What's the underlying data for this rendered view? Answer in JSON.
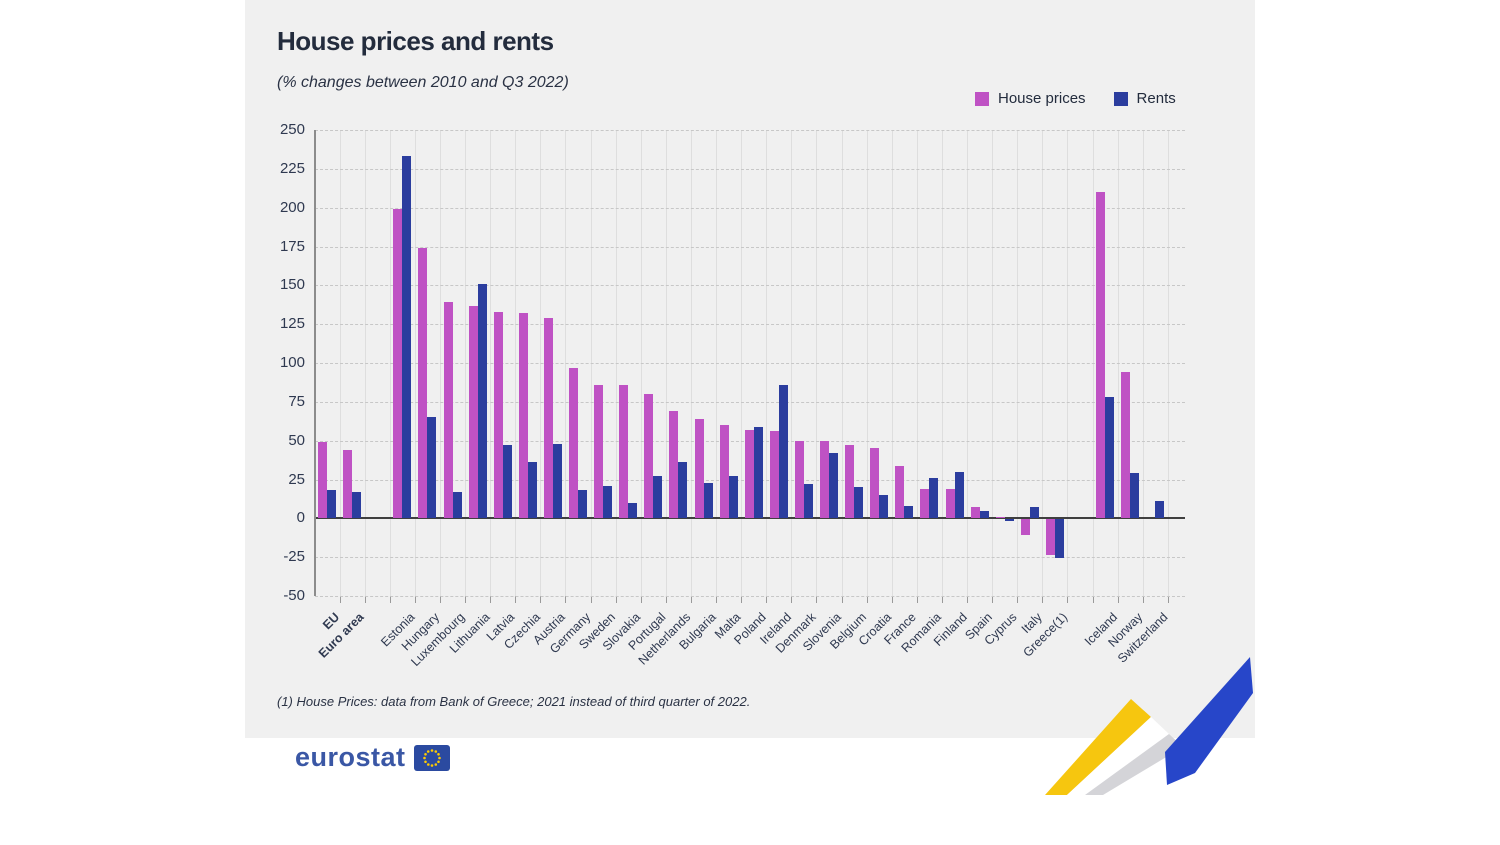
{
  "header": {
    "title": "House prices and rents",
    "subtitle": "(% changes between 2010 and Q3 2022)"
  },
  "legend": [
    {
      "label": "House prices",
      "color": "#bf52c4"
    },
    {
      "label": "Rents",
      "color": "#2b3d9e"
    }
  ],
  "footnote": "(1) House Prices: data from Bank of Greece; 2021 instead of third quarter of 2022.",
  "logo": {
    "text": "eurostat"
  },
  "colors": {
    "house_prices": "#bf52c4",
    "rents": "#2b3d9e",
    "background": "#f0f0f0",
    "ribbon_yellow": "#f6c60f",
    "ribbon_blue": "#2746c9",
    "ribbon_gray": "#d4d4d8"
  },
  "chart_data": {
    "type": "bar",
    "title": "House prices and rents",
    "subtitle": "(% changes between 2010 and Q3 2022)",
    "ylabel": "% change",
    "ylim": [
      -50,
      250
    ],
    "ytick_step": 25,
    "grid": true,
    "legend_position": "top-right",
    "categories": [
      "EU",
      "Euro area",
      "Estonia",
      "Hungary",
      "Luxembourg",
      "Lithuania",
      "Latvia",
      "Czechia",
      "Austria",
      "Germany",
      "Sweden",
      "Slovakia",
      "Portugal",
      "Netherlands",
      "Bulgaria",
      "Malta",
      "Poland",
      "Ireland",
      "Denmark",
      "Slovenia",
      "Belgium",
      "Croatia",
      "France",
      "Romania",
      "Finland",
      "Spain",
      "Cyprus",
      "Italy",
      "Greece(1)",
      "Iceland",
      "Norway",
      "Switzerland"
    ],
    "bold_categories": [
      "EU",
      "Euro area"
    ],
    "gap_after_indices": [
      1,
      28
    ],
    "series": [
      {
        "name": "House prices",
        "values": [
          49,
          44,
          199,
          174,
          139,
          137,
          133,
          132,
          129,
          97,
          86,
          86,
          80,
          69,
          64,
          60,
          57,
          56,
          50,
          50,
          47,
          45,
          34,
          19,
          19,
          7,
          1,
          -10,
          -23,
          210,
          94,
          null
        ]
      },
      {
        "name": "Rents",
        "values": [
          18,
          17,
          233,
          65,
          17,
          151,
          47,
          36,
          48,
          18,
          21,
          10,
          27,
          36,
          23,
          27,
          59,
          86,
          22,
          42,
          20,
          15,
          8,
          26,
          30,
          5,
          -1,
          7,
          -25,
          78,
          29,
          11
        ]
      }
    ]
  }
}
